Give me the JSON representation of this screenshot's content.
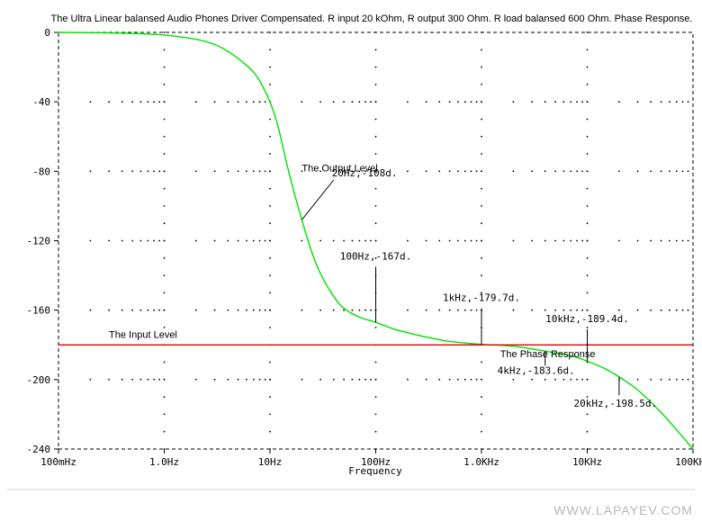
{
  "chart_data": {
    "type": "line",
    "title": "The Ultra Linear balansed Audio Phones Driver Compensated. R input 20 kOhm, R output 300 Ohm. R load balansed 600 Ohm. Phase Response.",
    "xlabel": "Frequency",
    "ylabel": "",
    "x_scale": "log",
    "xlim": [
      0.1,
      100000
    ],
    "ylim": [
      -240,
      0
    ],
    "grid": "dotted",
    "x_ticks": [
      0.1,
      1,
      10,
      100,
      1000,
      10000,
      100000
    ],
    "x_tick_labels": [
      "100mHz",
      "1.0Hz",
      "10Hz",
      "100Hz",
      "1.0KHz",
      "10KHz",
      "100KHz"
    ],
    "y_ticks": [
      0,
      -40,
      -80,
      -120,
      -160,
      -200,
      -240
    ],
    "y_tick_labels": [
      "0",
      "-40",
      "-80",
      "-120",
      "-160",
      "-200",
      "-240"
    ],
    "series": [
      {
        "name": "The Output Level",
        "color": "#00e000",
        "x": [
          0.1,
          0.3,
          0.5,
          1,
          2,
          3,
          4,
          5,
          6,
          7,
          8,
          10,
          12,
          15,
          20,
          25,
          30,
          40,
          50,
          70,
          100,
          150,
          200,
          300,
          500,
          1000,
          2000,
          4000,
          7000,
          10000,
          15000,
          20000,
          30000,
          50000,
          70000,
          100000
        ],
        "values": [
          0,
          -0.3,
          -0.6,
          -1.5,
          -4,
          -7,
          -11,
          -15,
          -19,
          -23,
          -28,
          -40,
          -55,
          -80,
          -108,
          -127,
          -139,
          -152,
          -159,
          -164,
          -167,
          -171,
          -173,
          -175.5,
          -178,
          -179.7,
          -180.8,
          -183.6,
          -186.3,
          -189.4,
          -194,
          -198.5,
          -206,
          -219,
          -229,
          -240
        ]
      },
      {
        "name": "The Input Level",
        "color": "#dd0000",
        "x": [
          0.1,
          100000
        ],
        "values": [
          -180,
          -180
        ]
      }
    ],
    "labels": [
      {
        "text": "The Output Level",
        "x": 20,
        "y": -80
      },
      {
        "text": "The Input Level",
        "x": 0.3,
        "y": -176
      },
      {
        "text": "The Phase Response",
        "x": 1500,
        "y": -187
      }
    ],
    "annotations": [
      {
        "text": "20Hz,-108d.",
        "x": 20,
        "y": -108,
        "tx": 40,
        "ty": -85
      },
      {
        "text": "100Hz,-167d.",
        "x": 100,
        "y": -167,
        "tx": 100,
        "ty": -135
      },
      {
        "text": "1kHz,-179.7d.",
        "x": 1000,
        "y": -179.7,
        "tx": 1000,
        "ty": -159
      },
      {
        "text": "10kHz,-189.4d.",
        "x": 10000,
        "y": -189.4,
        "tx": 10000,
        "ty": -171
      },
      {
        "text": "4kHz,-183.6d.",
        "x": 4000,
        "y": -183.6,
        "tx": 4000,
        "ty": -192
      },
      {
        "text": "20kHz,-198.5d.",
        "x": 20000,
        "y": -198.5,
        "tx": 20000,
        "ty": -209
      }
    ]
  },
  "watermark": "WWW.LAPAYEV.COM"
}
